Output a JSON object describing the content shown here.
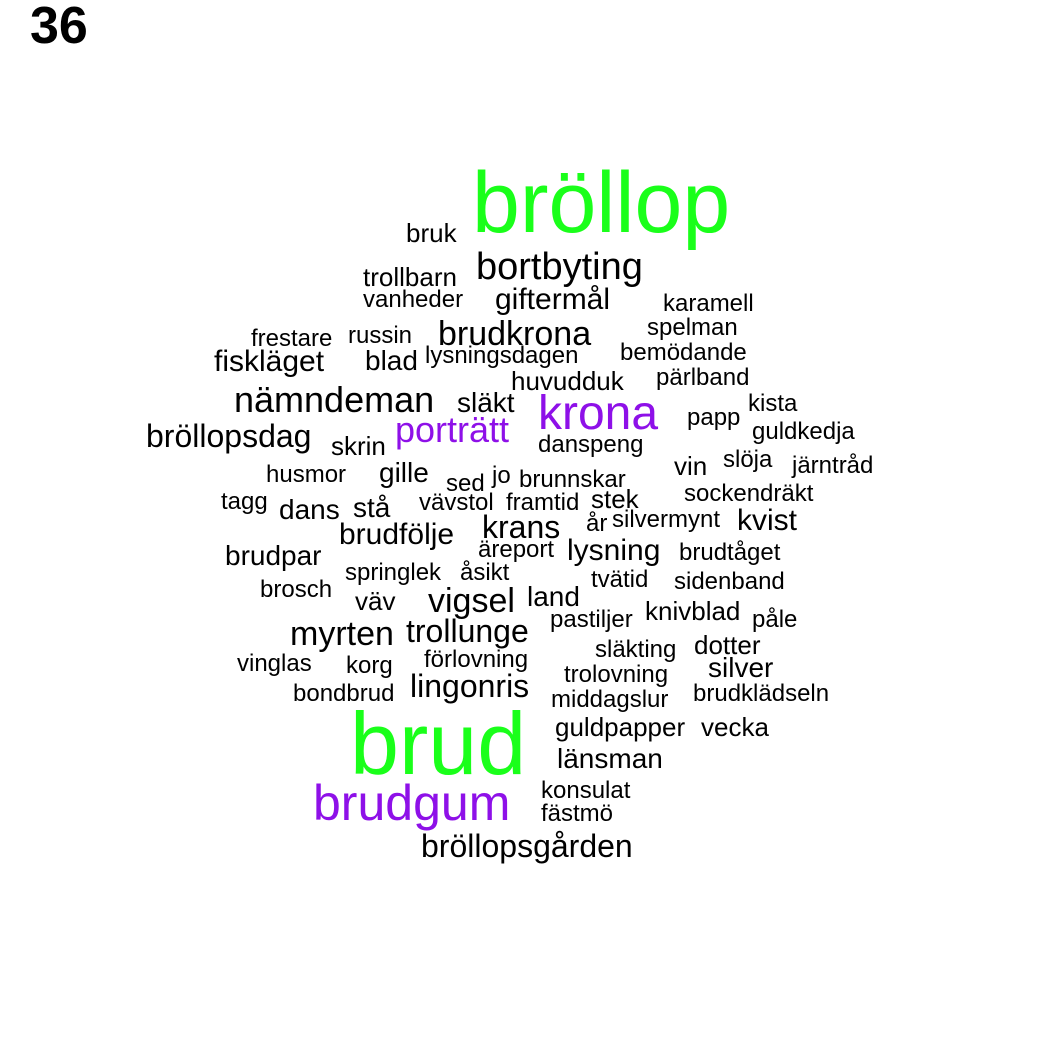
{
  "page_label": "36",
  "colors": {
    "top": "#1aff1a",
    "second": "#8e10e8",
    "default": "#000000"
  },
  "words": [
    {
      "text": "bröllop",
      "color": "#1aff1a"
    },
    {
      "text": "brud",
      "color": "#1aff1a"
    },
    {
      "text": "krona",
      "color": "#8e10e8"
    },
    {
      "text": "porträtt",
      "color": "#8e10e8"
    },
    {
      "text": "brudgum",
      "color": "#8e10e8"
    },
    {
      "text": "bruk",
      "color": "#000000"
    },
    {
      "text": "bortbyting",
      "color": "#000000"
    },
    {
      "text": "trollbarn",
      "color": "#000000"
    },
    {
      "text": "vanheder",
      "color": "#000000"
    },
    {
      "text": "giftermål",
      "color": "#000000"
    },
    {
      "text": "karamell",
      "color": "#000000"
    },
    {
      "text": "spelman",
      "color": "#000000"
    },
    {
      "text": "frestare",
      "color": "#000000"
    },
    {
      "text": "russin",
      "color": "#000000"
    },
    {
      "text": "brudkrona",
      "color": "#000000"
    },
    {
      "text": "bemödande",
      "color": "#000000"
    },
    {
      "text": "fiskläget",
      "color": "#000000"
    },
    {
      "text": "blad",
      "color": "#000000"
    },
    {
      "text": "lysningsdagen",
      "color": "#000000"
    },
    {
      "text": "huvudduk",
      "color": "#000000"
    },
    {
      "text": "pärlband",
      "color": "#000000"
    },
    {
      "text": "nämndeman",
      "color": "#000000"
    },
    {
      "text": "släkt",
      "color": "#000000"
    },
    {
      "text": "kista",
      "color": "#000000"
    },
    {
      "text": "papp",
      "color": "#000000"
    },
    {
      "text": "bröllopsdag",
      "color": "#000000"
    },
    {
      "text": "skrin",
      "color": "#000000"
    },
    {
      "text": "danspeng",
      "color": "#000000"
    },
    {
      "text": "guldkedja",
      "color": "#000000"
    },
    {
      "text": "husmor",
      "color": "#000000"
    },
    {
      "text": "gille",
      "color": "#000000"
    },
    {
      "text": "sed",
      "color": "#000000"
    },
    {
      "text": "jo",
      "color": "#000000"
    },
    {
      "text": "brunnskar",
      "color": "#000000"
    },
    {
      "text": "vin",
      "color": "#000000"
    },
    {
      "text": "slöja",
      "color": "#000000"
    },
    {
      "text": "järntråd",
      "color": "#000000"
    },
    {
      "text": "tagg",
      "color": "#000000"
    },
    {
      "text": "dans",
      "color": "#000000"
    },
    {
      "text": "stå",
      "color": "#000000"
    },
    {
      "text": "vävstol",
      "color": "#000000"
    },
    {
      "text": "framtid",
      "color": "#000000"
    },
    {
      "text": "stek",
      "color": "#000000"
    },
    {
      "text": "sockendräkt",
      "color": "#000000"
    },
    {
      "text": "krans",
      "color": "#000000"
    },
    {
      "text": "år",
      "color": "#000000"
    },
    {
      "text": "silvermynt",
      "color": "#000000"
    },
    {
      "text": "kvist",
      "color": "#000000"
    },
    {
      "text": "brudfölje",
      "color": "#000000"
    },
    {
      "text": "brudpar",
      "color": "#000000"
    },
    {
      "text": "äreport",
      "color": "#000000"
    },
    {
      "text": "lysning",
      "color": "#000000"
    },
    {
      "text": "brudtåget",
      "color": "#000000"
    },
    {
      "text": "springlek",
      "color": "#000000"
    },
    {
      "text": "åsikt",
      "color": "#000000"
    },
    {
      "text": "tvätid",
      "color": "#000000"
    },
    {
      "text": "sidenband",
      "color": "#000000"
    },
    {
      "text": "brosch",
      "color": "#000000"
    },
    {
      "text": "väv",
      "color": "#000000"
    },
    {
      "text": "vigsel",
      "color": "#000000"
    },
    {
      "text": "land",
      "color": "#000000"
    },
    {
      "text": "knivblad",
      "color": "#000000"
    },
    {
      "text": "pastiljer",
      "color": "#000000"
    },
    {
      "text": "påle",
      "color": "#000000"
    },
    {
      "text": "myrten",
      "color": "#000000"
    },
    {
      "text": "trollunge",
      "color": "#000000"
    },
    {
      "text": "släkting",
      "color": "#000000"
    },
    {
      "text": "dotter",
      "color": "#000000"
    },
    {
      "text": "vinglas",
      "color": "#000000"
    },
    {
      "text": "korg",
      "color": "#000000"
    },
    {
      "text": "förlovning",
      "color": "#000000"
    },
    {
      "text": "silver",
      "color": "#000000"
    },
    {
      "text": "trolovning",
      "color": "#000000"
    },
    {
      "text": "bondbrud",
      "color": "#000000"
    },
    {
      "text": "lingonris",
      "color": "#000000"
    },
    {
      "text": "middagslur",
      "color": "#000000"
    },
    {
      "text": "brudklädseln",
      "color": "#000000"
    },
    {
      "text": "guldpapper",
      "color": "#000000"
    },
    {
      "text": "vecka",
      "color": "#000000"
    },
    {
      "text": "länsman",
      "color": "#000000"
    },
    {
      "text": "konsulat",
      "color": "#000000"
    },
    {
      "text": "fästmö",
      "color": "#000000"
    },
    {
      "text": "bröllopsgården",
      "color": "#000000"
    }
  ]
}
